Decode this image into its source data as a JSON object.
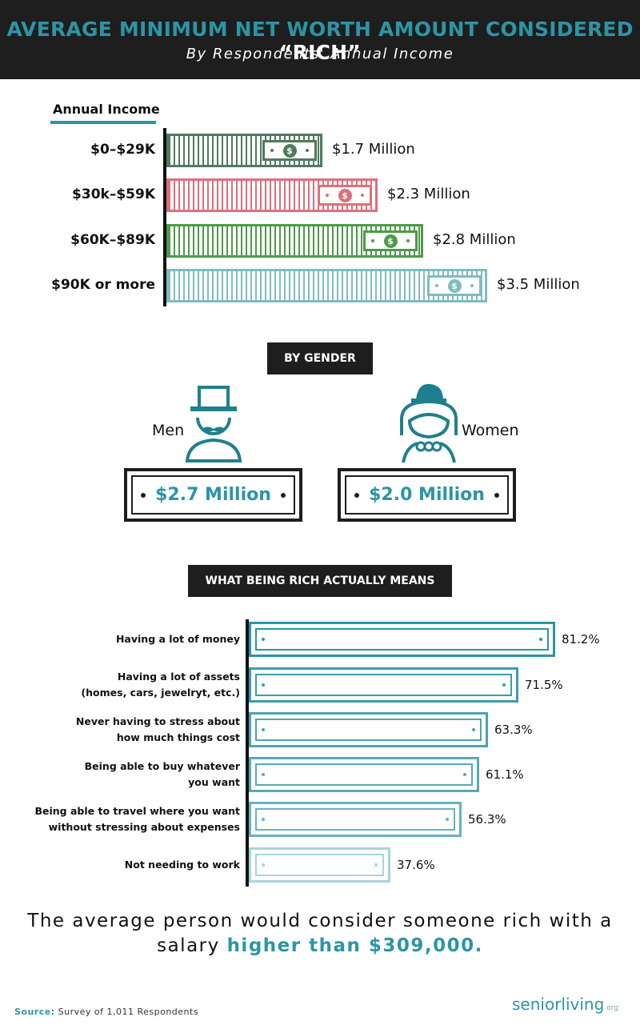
{
  "header": {
    "title_main": "AVERAGE MINIMUM NET WORTH AMOUNT CONSIDERED",
    "title_quote": "“RICH”",
    "subtitle": "By Respondents' Annual Income"
  },
  "income": {
    "axis_label": "Annual Income",
    "bill_symbol": "$"
  },
  "gender": {
    "tag": "BY GENDER",
    "men_label": "Men",
    "women_label": "Women",
    "men_value": "$2.7 Million",
    "women_value": "$2.0 Million"
  },
  "meaning": {
    "tag": "WHAT BEING RICH ACTUALLY MEANS"
  },
  "chart_data": [
    {
      "type": "bar",
      "orientation": "horizontal",
      "xlabel": "",
      "ylabel": "Annual Income",
      "unit": "Million USD",
      "categories": [
        "$0–$29K",
        "$30k–$59K",
        "$60K–$89K",
        "$90K or more"
      ],
      "values": [
        1.7,
        2.3,
        2.8,
        3.5
      ],
      "value_labels": [
        "$1.7 Million",
        "$2.3 Million",
        "$2.8 Million",
        "$3.5 Million"
      ],
      "colors": [
        "#507a5e",
        "#df6f7a",
        "#4e9a4a",
        "#7fbcbf"
      ]
    },
    {
      "type": "bar",
      "orientation": "horizontal",
      "unit": "percent",
      "categories": [
        "Having a lot of money",
        "Having a lot of assets\n(homes, cars, jewelryt, etc.)",
        "Never having to stress about\nhow much things cost",
        "Being able to buy whatever\nyou want",
        "Being able to travel where you want\nwithout stressing about expenses",
        "Not needing to work"
      ],
      "values": [
        81.2,
        71.5,
        63.3,
        61.1,
        56.3,
        37.6
      ],
      "value_labels": [
        "81.2%",
        "71.5%",
        "63.3%",
        "61.1%",
        "56.3%",
        "37.6%"
      ],
      "colors": [
        "#2b95a5",
        "#3c9cad",
        "#4aa4b3",
        "#55aab8",
        "#66b3c0",
        "#a9d4dc"
      ]
    }
  ],
  "summary": {
    "text": "The average person would consider someone rich with a salary",
    "highlight": "higher than $309,000."
  },
  "source": {
    "label": "Source:",
    "text": "Survey of 1,011 Respondents"
  },
  "logo": {
    "text": "seniorliving",
    "suffix": ".org"
  }
}
